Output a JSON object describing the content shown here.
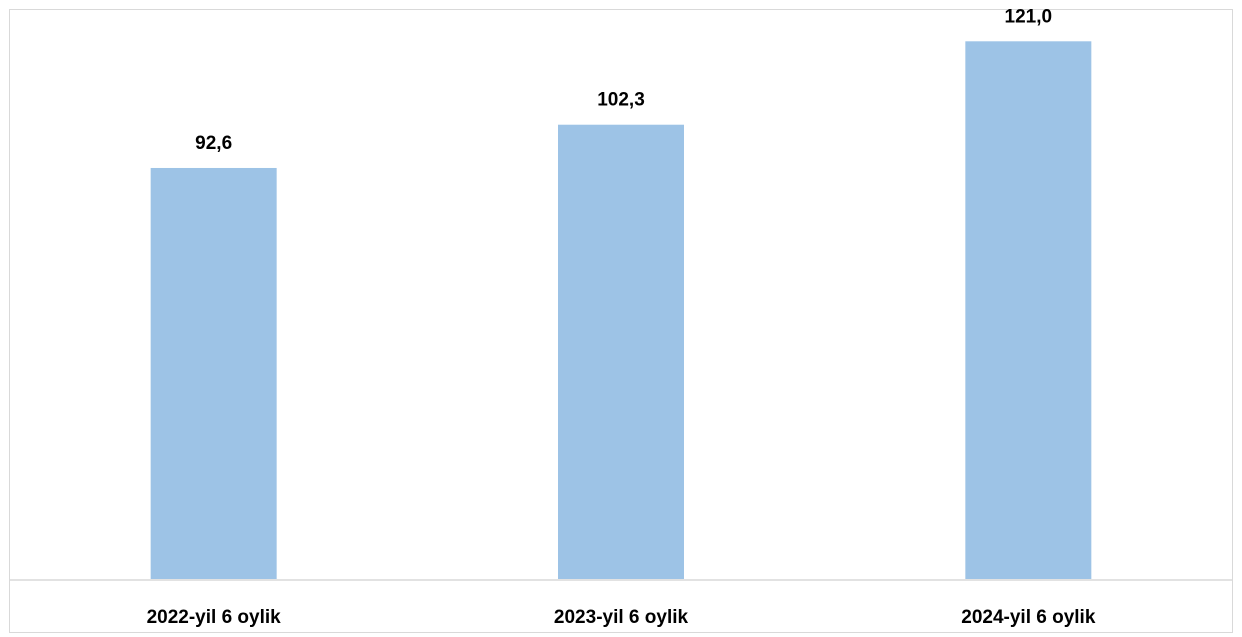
{
  "chart_data": {
    "type": "bar",
    "categories": [
      "2022-yil 6 oylik",
      "2023-yil 6 oylik",
      "2024-yil 6 oylik"
    ],
    "values": [
      92.6,
      102.3,
      121.0
    ],
    "value_labels": [
      "92,6",
      "102,3",
      "121,0"
    ],
    "title": "",
    "xlabel": "",
    "ylabel": "",
    "ylim": [
      0,
      126
    ],
    "grid": false,
    "legend": "none",
    "colors": {
      "bar_fill": "#9dc3e6",
      "bar_edge": "#ffffff",
      "axis": "#d9d9d9",
      "text": "#000000"
    }
  }
}
